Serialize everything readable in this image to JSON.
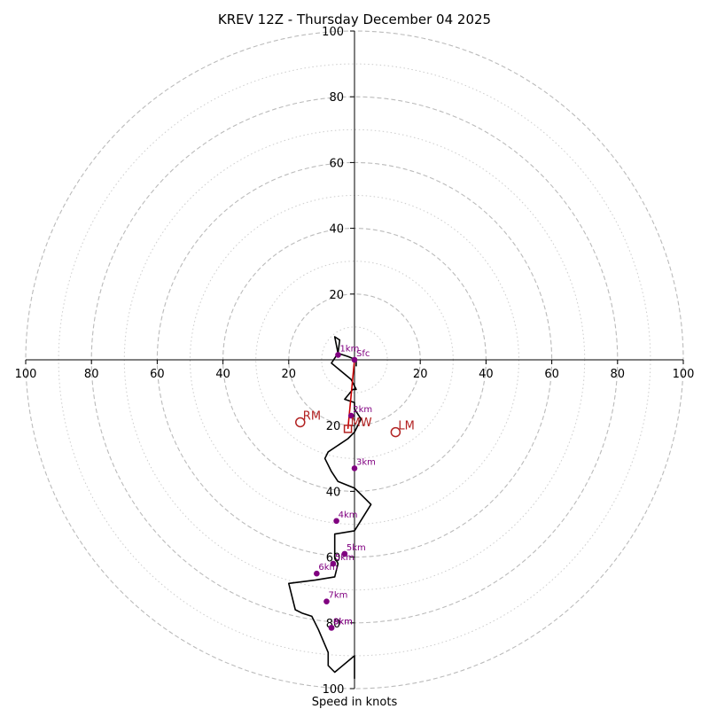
{
  "chart_data": {
    "type": "scatter",
    "subtype": "hodograph",
    "title": "KREV 12Z - Thursday December 04 2025",
    "xlabel": "Speed in knots",
    "ylabel": "",
    "xlim": [
      -100,
      100
    ],
    "ylim": [
      -100,
      100
    ],
    "ring_major_step": 20,
    "ring_minor_step": 10,
    "ticks": {
      "x_left": [
        100,
        80,
        60,
        40,
        20
      ],
      "x_right": [
        20,
        40,
        60,
        80,
        100
      ],
      "y_top": [
        100,
        80,
        60,
        40,
        20
      ],
      "y_bottom": [
        20,
        40,
        60,
        80,
        100
      ]
    },
    "hodograph_trace": {
      "u": [
        0.5,
        0.5,
        -2,
        -5,
        -4.5,
        -6,
        -5,
        -7,
        -1,
        0.5,
        -0.5,
        -3,
        0,
        0,
        2,
        0,
        -2,
        -8,
        -9,
        -7,
        -5,
        0,
        5,
        0,
        -6,
        -6,
        -5,
        -6,
        -12,
        -20,
        -18,
        -18,
        -16,
        -13,
        -11,
        -8,
        -8,
        -6,
        0,
        0
      ],
      "v": [
        -2,
        0,
        1,
        2,
        6,
        7,
        2,
        -1,
        -6,
        -9,
        -9,
        -12,
        -13,
        -15,
        -18,
        -22,
        -24,
        -28,
        -30,
        -34,
        -37,
        -39,
        -44,
        -52,
        -53,
        -60,
        -62,
        -66,
        -67,
        -68,
        -76,
        -76,
        -77,
        -78,
        -82,
        -89,
        -93,
        -95,
        -90,
        -97
      ]
    },
    "height_markers": [
      {
        "label": "Sfc",
        "u": 0,
        "v": 0
      },
      {
        "label": "1km",
        "u": -5,
        "v": 1.5
      },
      {
        "label": "2km",
        "u": -1,
        "v": -17
      },
      {
        "label": "3km",
        "u": 0,
        "v": -33
      },
      {
        "label": "4km",
        "u": -5.5,
        "v": -49
      },
      {
        "label": "5km",
        "u": -3,
        "v": -59
      },
      {
        "label": "5km",
        "u": -6.5,
        "v": -62
      },
      {
        "label": "6km",
        "u": -11.5,
        "v": -65
      },
      {
        "label": "7km",
        "u": -8.5,
        "v": -73.5
      },
      {
        "label": "8km",
        "u": -7,
        "v": -81.5
      },
      {
        "label": "9km",
        "u": -7,
        "v": -81.5
      }
    ],
    "storm_motion": [
      {
        "label": "RM",
        "u": -16.5,
        "v": -19,
        "shape": "circle"
      },
      {
        "label": "LM",
        "u": 12.5,
        "v": -22,
        "shape": "circle"
      },
      {
        "label": "MW",
        "u": -2,
        "v": -21,
        "shape": "square"
      }
    ],
    "mean_wind_line": {
      "from": {
        "u": 0,
        "v": 0
      },
      "to": {
        "u": -2,
        "v": -21
      }
    },
    "colors": {
      "trace": "#000000",
      "height_markers": "#800080",
      "storm_motion": "#b22222",
      "mean_wind_line": "#cc0000",
      "grid": "#bbbbbb"
    }
  }
}
